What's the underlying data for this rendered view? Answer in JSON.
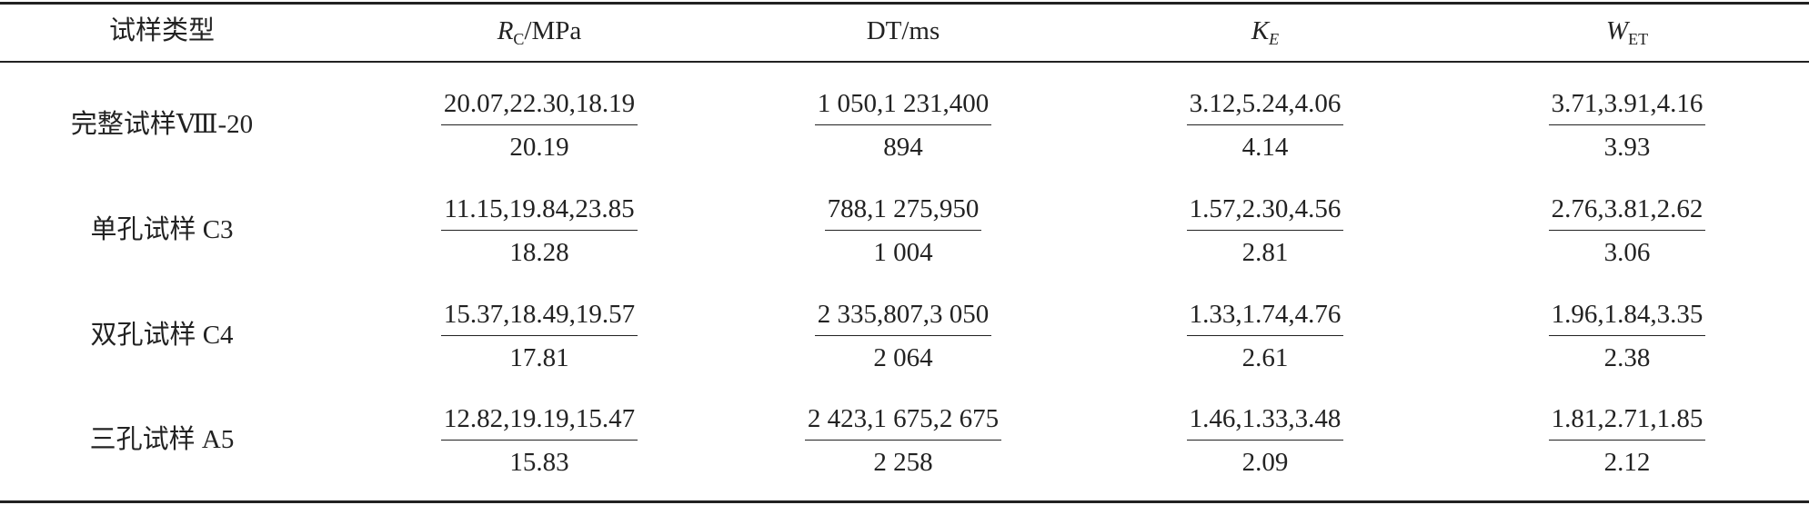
{
  "table": {
    "header": [
      "试样类型",
      {
        "symbol": "R",
        "subscript": "C",
        "unit": "/MPa"
      },
      "DT/ms",
      {
        "symbol": "K",
        "subscript": "E"
      },
      {
        "symbol": "W",
        "subscript": "ET"
      }
    ],
    "rows": [
      {
        "name": "完整试样Ⅷ-20",
        "cells": [
          {
            "top": "20.07,22.30,18.19",
            "bottom": "20.19"
          },
          {
            "top": "1 050,1 231,400",
            "bottom": "894"
          },
          {
            "top": "3.12,5.24,4.06",
            "bottom": "4.14"
          },
          {
            "top": "3.71,3.91,4.16",
            "bottom": "3.93"
          }
        ]
      },
      {
        "name": "单孔试样 C3",
        "cells": [
          {
            "top": "11.15,19.84,23.85",
            "bottom": "18.28"
          },
          {
            "top": "788,1 275,950",
            "bottom": "1 004"
          },
          {
            "top": "1.57,2.30,4.56",
            "bottom": "2.81"
          },
          {
            "top": "2.76,3.81,2.62",
            "bottom": "3.06"
          }
        ]
      },
      {
        "name": "双孔试样 C4",
        "cells": [
          {
            "top": "15.37,18.49,19.57",
            "bottom": "17.81"
          },
          {
            "top": "2 335,807,3 050",
            "bottom": "2 064"
          },
          {
            "top": "1.33,1.74,4.76",
            "bottom": "2.61"
          },
          {
            "top": "1.96,1.84,3.35",
            "bottom": "2.38"
          }
        ]
      },
      {
        "name": "三孔试样 A5",
        "cells": [
          {
            "top": "12.82,19.19,15.47",
            "bottom": "15.83"
          },
          {
            "top": "2 423,1 675,2 675",
            "bottom": "2 258"
          },
          {
            "top": "1.46,1.33,3.48",
            "bottom": "2.09"
          },
          {
            "top": "1.81,2.71,1.85",
            "bottom": "2.12"
          }
        ]
      }
    ]
  }
}
